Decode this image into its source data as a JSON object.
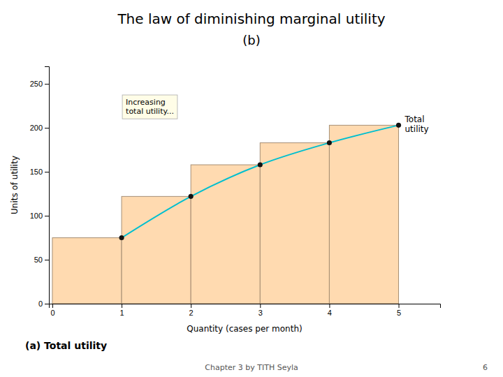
{
  "chart_data": {
    "type": "bar",
    "title": "The law of diminishing marginal utility",
    "subtitle": "(b)",
    "x_label": "Quantity (cases per month)",
    "y_label": "Units of utility",
    "x": [
      1,
      2,
      3,
      4,
      5
    ],
    "series": [
      {
        "type": "bar",
        "color": "#FFDAB0",
        "values": [
          75,
          122,
          158,
          183,
          203
        ]
      },
      {
        "type": "line",
        "color": "#00BFCF",
        "line_style": "solid",
        "values": [
          75,
          122,
          158,
          183,
          203
        ]
      },
      {
        "type": "scatter",
        "color": "#111111",
        "marker": "circle",
        "values": [
          75,
          122,
          158,
          183,
          203
        ]
      }
    ],
    "xlim": [
      -0.05,
      5.6
    ],
    "xticks": [
      0,
      1,
      2,
      3,
      4,
      5
    ],
    "ylim": [
      0,
      270
    ],
    "yticks": [
      0,
      50,
      100,
      150,
      200,
      250
    ],
    "grid": false,
    "annotations": [
      "Increasing\ntotal utility...",
      "Total\nutility"
    ],
    "footer": [
      "(a) Total utility",
      "Chapter 3 by TITH Seyla",
      "6"
    ]
  }
}
